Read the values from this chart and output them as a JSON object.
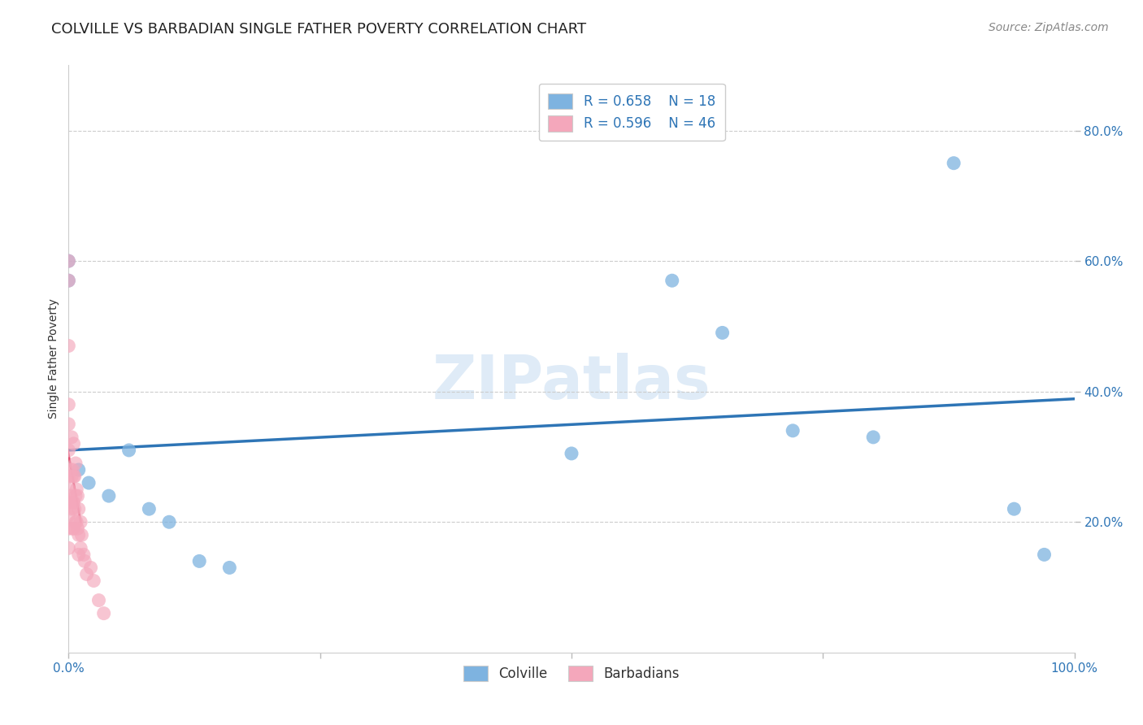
{
  "title": "COLVILLE VS BARBADIAN SINGLE FATHER POVERTY CORRELATION CHART",
  "source": "Source: ZipAtlas.com",
  "ylabel": "Single Father Poverty",
  "watermark": "ZIPatlas",
  "blue_R": 0.658,
  "blue_N": 18,
  "pink_R": 0.596,
  "pink_N": 46,
  "colville_x": [
    0.0,
    0.0,
    0.01,
    0.02,
    0.04,
    0.06,
    0.08,
    0.1,
    0.13,
    0.16,
    0.5,
    0.6,
    0.65,
    0.72,
    0.8,
    0.88,
    0.94,
    0.97
  ],
  "colville_y": [
    0.6,
    0.57,
    0.28,
    0.26,
    0.24,
    0.31,
    0.22,
    0.2,
    0.14,
    0.13,
    0.305,
    0.57,
    0.49,
    0.34,
    0.33,
    0.75,
    0.22,
    0.15
  ],
  "barbadian_x": [
    0.0,
    0.0,
    0.0,
    0.0,
    0.0,
    0.0,
    0.0,
    0.0,
    0.0,
    0.0,
    0.0,
    0.0,
    0.002,
    0.002,
    0.003,
    0.003,
    0.003,
    0.004,
    0.004,
    0.004,
    0.005,
    0.005,
    0.005,
    0.005,
    0.006,
    0.006,
    0.007,
    0.007,
    0.007,
    0.008,
    0.008,
    0.009,
    0.009,
    0.01,
    0.01,
    0.01,
    0.012,
    0.012,
    0.013,
    0.015,
    0.016,
    0.018,
    0.022,
    0.025,
    0.03,
    0.035
  ],
  "barbadian_y": [
    0.6,
    0.57,
    0.47,
    0.38,
    0.35,
    0.31,
    0.27,
    0.25,
    0.23,
    0.21,
    0.19,
    0.16,
    0.28,
    0.24,
    0.33,
    0.27,
    0.22,
    0.28,
    0.23,
    0.19,
    0.32,
    0.27,
    0.23,
    0.19,
    0.27,
    0.22,
    0.29,
    0.24,
    0.2,
    0.25,
    0.2,
    0.24,
    0.19,
    0.22,
    0.18,
    0.15,
    0.2,
    0.16,
    0.18,
    0.15,
    0.14,
    0.12,
    0.13,
    0.11,
    0.08,
    0.06
  ],
  "xlim": [
    0.0,
    1.0
  ],
  "ylim": [
    0.0,
    0.9
  ],
  "yticks": [
    0.2,
    0.4,
    0.6,
    0.8
  ],
  "ytick_labels": [
    "20.0%",
    "40.0%",
    "60.0%",
    "80.0%"
  ],
  "xticks": [
    0.0,
    0.25,
    0.5,
    0.75,
    1.0
  ],
  "xtick_labels": [
    "0.0%",
    "",
    "",
    "",
    "100.0%"
  ],
  "blue_color": "#7EB3E0",
  "pink_color": "#F4A7BB",
  "blue_line_color": "#2E75B6",
  "pink_line_color": "#E05070",
  "pink_dashed_color": "#F0A0B8",
  "grid_color": "#CCCCCC",
  "background_color": "#FFFFFF",
  "title_fontsize": 13,
  "axis_label_fontsize": 10,
  "tick_fontsize": 11,
  "legend_fontsize": 12,
  "source_fontsize": 10
}
